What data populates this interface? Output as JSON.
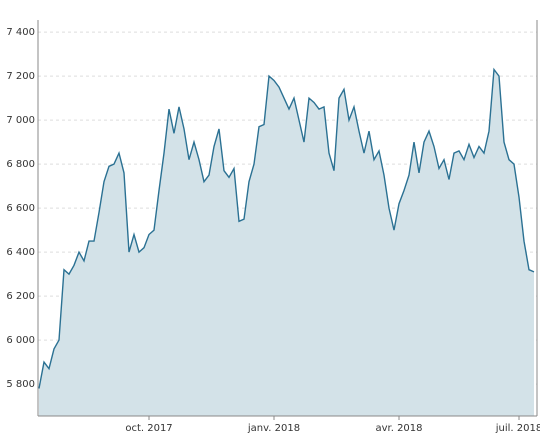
{
  "chart_data": {
    "type": "area",
    "color": "#2b7193",
    "fill": "#d3e2e8",
    "categories": [
      null,
      null,
      null,
      null,
      null,
      null,
      null,
      null,
      null,
      null,
      null,
      null,
      null,
      null,
      null,
      null,
      null,
      null,
      null,
      null,
      null,
      null,
      "oct. 2017",
      null,
      null,
      null,
      null,
      null,
      null,
      null,
      null,
      null,
      null,
      null,
      null,
      null,
      null,
      null,
      null,
      null,
      null,
      null,
      null,
      null,
      null,
      null,
      null,
      "janv. 2018",
      null,
      null,
      null,
      null,
      null,
      null,
      null,
      null,
      null,
      null,
      null,
      null,
      null,
      null,
      null,
      null,
      null,
      null,
      null,
      null,
      null,
      null,
      null,
      null,
      "avr. 2018",
      null,
      null,
      null,
      null,
      null,
      null,
      null,
      null,
      null,
      null,
      null,
      null,
      null,
      null,
      null,
      null,
      null,
      null,
      null,
      null,
      null,
      null,
      null,
      "juil. 2018",
      null,
      null,
      null
    ],
    "values": [
      5780,
      5900,
      5870,
      5960,
      6000,
      6320,
      6300,
      6340,
      6400,
      6360,
      6450,
      6450,
      6580,
      6720,
      6790,
      6800,
      6850,
      6760,
      6400,
      6480,
      6400,
      6420,
      6480,
      6500,
      6680,
      6850,
      7050,
      6940,
      7060,
      6960,
      6820,
      6900,
      6820,
      6720,
      6750,
      6880,
      6960,
      6770,
      6740,
      6780,
      6540,
      6550,
      6720,
      6800,
      6970,
      6980,
      7200,
      7180,
      7150,
      7100,
      7050,
      7100,
      7000,
      6900,
      7100,
      7080,
      7050,
      7060,
      6850,
      6770,
      7100,
      7140,
      7000,
      7060,
      6950,
      6850,
      6950,
      6820,
      6860,
      6750,
      6600,
      6500,
      6620,
      6680,
      6750,
      6900,
      6760,
      6900,
      6950,
      6880,
      6780,
      6820,
      6730,
      6850,
      6860,
      6820,
      6890,
      6830,
      6880,
      6850,
      6950,
      7230,
      7200,
      6900,
      6820,
      6800,
      6650,
      6450,
      6320,
      6310
    ],
    "ylim": [
      5655,
      7455
    ],
    "yticks": [
      {
        "value": 5800,
        "label": "5 800"
      },
      {
        "value": 6000,
        "label": "6 000"
      },
      {
        "value": 6200,
        "label": "6 200"
      },
      {
        "value": 6400,
        "label": "6 400"
      },
      {
        "value": 6600,
        "label": "6 600"
      },
      {
        "value": 6800,
        "label": "6 800"
      },
      {
        "value": 7000,
        "label": "7 000"
      },
      {
        "value": 7200,
        "label": "7 200"
      },
      {
        "value": 7400,
        "label": "7 400"
      }
    ],
    "grid": true
  }
}
